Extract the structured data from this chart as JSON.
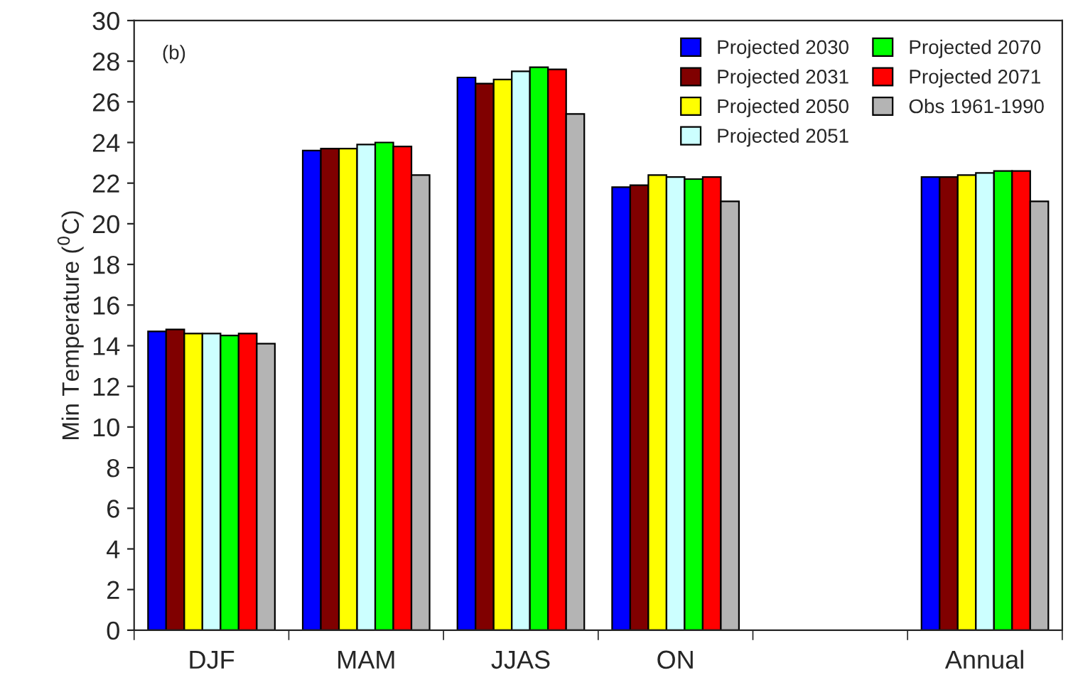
{
  "chart_data": {
    "type": "bar",
    "ylabel": "Min Temperature ($^{0}$C)",
    "categories": [
      "DJF",
      "MAM",
      "JJAS",
      "ON",
      null,
      "Annual"
    ],
    "series": [
      {
        "name": "Projected 2030",
        "color": "#0000ff",
        "values": [
          14.7,
          23.6,
          27.2,
          21.8,
          null,
          22.3
        ]
      },
      {
        "name": "Projected 2031",
        "color": "#800000",
        "values": [
          14.8,
          23.7,
          26.9,
          21.9,
          null,
          22.3
        ]
      },
      {
        "name": "Projected 2050",
        "color": "#ffff00",
        "values": [
          14.6,
          23.7,
          27.1,
          22.4,
          null,
          22.4
        ]
      },
      {
        "name": "Projected 2051",
        "color": "#ccffff",
        "values": [
          14.6,
          23.9,
          27.5,
          22.3,
          null,
          22.5
        ]
      },
      {
        "name": "Projected 2070",
        "color": "#00ff00",
        "values": [
          14.5,
          24.0,
          27.7,
          22.2,
          null,
          22.6
        ]
      },
      {
        "name": "Projected 2071",
        "color": "#ff0000",
        "values": [
          14.6,
          23.8,
          27.6,
          22.3,
          null,
          22.6
        ]
      },
      {
        "name": "Obs 1961-1990",
        "color": "#b4b4b4",
        "values": [
          14.1,
          22.4,
          25.4,
          21.1,
          null,
          21.1
        ]
      }
    ],
    "ylim": [
      0,
      30
    ],
    "yticks": [
      0,
      2,
      4,
      6,
      8,
      10,
      12,
      14,
      16,
      18,
      20,
      22,
      24,
      26,
      28,
      30
    ],
    "annotations": [
      "(b)"
    ],
    "legend": "top right",
    "grid": false
  }
}
